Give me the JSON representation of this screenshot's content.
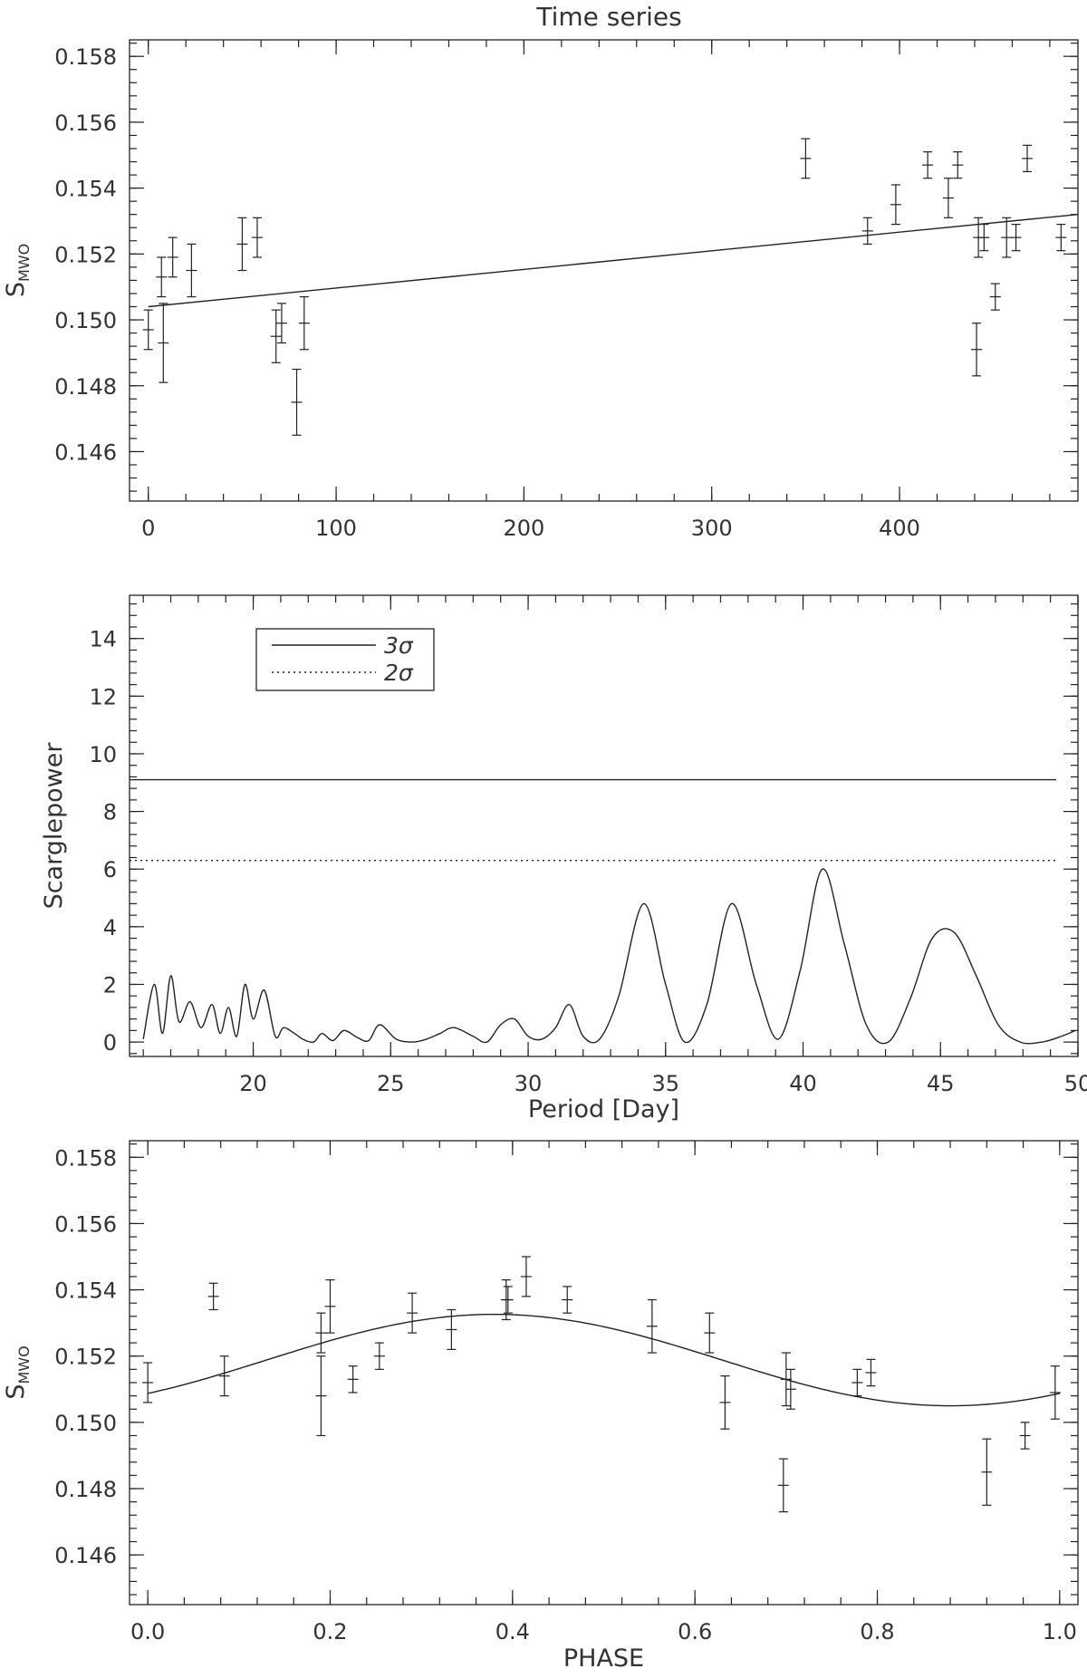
{
  "chart_data": [
    {
      "type": "scatter",
      "title": "Time series",
      "xlabel": "",
      "ylabel": "S",
      "ylabel_sub": "MWO",
      "xlim": [
        -10,
        495
      ],
      "ylim": [
        0.1445,
        0.1585
      ],
      "xticks": [
        0,
        100,
        200,
        300,
        400
      ],
      "xtick_labels": [
        "0",
        "100",
        "200",
        "300",
        "400"
      ],
      "yticks": [
        0.146,
        0.148,
        0.15,
        0.152,
        0.154,
        0.156,
        0.158
      ],
      "ytick_labels": [
        "0.146",
        "0.148",
        "0.150",
        "0.152",
        "0.154",
        "0.156",
        "0.158"
      ],
      "grid": false,
      "points": [
        {
          "x": 0,
          "y": 0.1497,
          "err": 0.0006
        },
        {
          "x": 7,
          "y": 0.1513,
          "err": 0.0006
        },
        {
          "x": 8,
          "y": 0.1493,
          "err": 0.0012
        },
        {
          "x": 13,
          "y": 0.1519,
          "err": 0.0006
        },
        {
          "x": 23,
          "y": 0.1515,
          "err": 0.0008
        },
        {
          "x": 50,
          "y": 0.1523,
          "err": 0.0008
        },
        {
          "x": 58,
          "y": 0.1525,
          "err": 0.0006
        },
        {
          "x": 68,
          "y": 0.1495,
          "err": 0.0008
        },
        {
          "x": 71,
          "y": 0.1499,
          "err": 0.0006
        },
        {
          "x": 79,
          "y": 0.1475,
          "err": 0.001
        },
        {
          "x": 83,
          "y": 0.1499,
          "err": 0.0008
        },
        {
          "x": 350,
          "y": 0.1549,
          "err": 0.0006
        },
        {
          "x": 383,
          "y": 0.1527,
          "err": 0.0004
        },
        {
          "x": 398,
          "y": 0.1535,
          "err": 0.0006
        },
        {
          "x": 415,
          "y": 0.1547,
          "err": 0.0004
        },
        {
          "x": 426,
          "y": 0.1537,
          "err": 0.0006
        },
        {
          "x": 431,
          "y": 0.1547,
          "err": 0.0004
        },
        {
          "x": 441,
          "y": 0.1491,
          "err": 0.0008
        },
        {
          "x": 442,
          "y": 0.1525,
          "err": 0.0006
        },
        {
          "x": 445,
          "y": 0.1525,
          "err": 0.0004
        },
        {
          "x": 451,
          "y": 0.1507,
          "err": 0.0004
        },
        {
          "x": 457,
          "y": 0.1525,
          "err": 0.0006
        },
        {
          "x": 462,
          "y": 0.1525,
          "err": 0.0004
        },
        {
          "x": 468,
          "y": 0.1549,
          "err": 0.0004
        },
        {
          "x": 486,
          "y": 0.1525,
          "err": 0.0004
        }
      ],
      "trend_line": {
        "x": [
          0,
          495
        ],
        "y": [
          0.1504,
          0.1532
        ]
      }
    },
    {
      "type": "line",
      "title": "",
      "xlabel": "Period [Day]",
      "ylabel": "Scarglepower",
      "xlim": [
        15.5,
        50
      ],
      "ylim": [
        -0.5,
        15.5
      ],
      "xticks": [
        20,
        25,
        30,
        35,
        40,
        45,
        50
      ],
      "xtick_labels": [
        "20",
        "25",
        "30",
        "35",
        "40",
        "45",
        "50"
      ],
      "yticks": [
        0,
        2,
        4,
        6,
        8,
        10,
        12,
        14
      ],
      "ytick_labels": [
        "0",
        "2",
        "4",
        "6",
        "8",
        "10",
        "12",
        "14"
      ],
      "grid": false,
      "legend": {
        "placement": "top-left",
        "entries": [
          {
            "label": "3σ",
            "style": "solid"
          },
          {
            "label": "2σ",
            "style": "dotted"
          }
        ]
      },
      "thresholds": [
        {
          "label": "3σ",
          "y": 9.1,
          "style": "solid"
        },
        {
          "label": "2σ",
          "y": 6.3,
          "style": "dotted"
        }
      ],
      "series": [
        {
          "x": [
            16,
            16.4,
            16.7,
            17.0,
            17.3,
            17.7,
            18.1,
            18.5,
            18.8,
            19.1,
            19.4,
            19.7,
            20.0,
            20.4,
            20.8,
            21.1,
            21.5,
            21.8,
            22.2,
            22.5,
            22.9,
            23.3,
            23.8,
            24.2,
            24.6,
            25.2,
            25.8,
            26.3,
            26.8,
            27.3,
            28.0,
            28.5,
            29.0,
            29.5,
            30.0,
            30.5,
            31.0,
            31.5,
            32.0,
            32.6,
            33.3,
            34.2,
            35.0,
            35.7,
            36.5,
            37.4,
            38.3,
            39.1,
            39.9,
            40.7,
            41.5,
            42.3,
            43.1,
            43.9,
            44.7,
            45.5,
            46.3,
            47.1,
            47.9,
            48.7,
            49.4,
            49.9
          ],
          "y": [
            0.1,
            2.0,
            0.3,
            2.3,
            0.7,
            1.4,
            0.5,
            1.3,
            0.3,
            1.2,
            0.2,
            2.0,
            0.8,
            1.8,
            0.2,
            0.5,
            0.3,
            0.1,
            0.0,
            0.3,
            0.05,
            0.4,
            0.15,
            0.05,
            0.6,
            0.1,
            0.0,
            0.1,
            0.3,
            0.5,
            0.2,
            0.0,
            0.6,
            0.8,
            0.2,
            0.1,
            0.5,
            1.3,
            0.2,
            0.1,
            1.6,
            4.8,
            2.0,
            0.0,
            1.3,
            4.8,
            2.0,
            0.1,
            2.5,
            6.0,
            3.4,
            0.6,
            0.0,
            1.5,
            3.6,
            3.8,
            2.3,
            0.6,
            0.0,
            0.0,
            0.2,
            0.4
          ]
        }
      ]
    },
    {
      "type": "scatter",
      "title": "",
      "xlabel": "PHASE",
      "ylabel": "S",
      "ylabel_sub": "MWO",
      "xlim": [
        -0.02,
        1.02
      ],
      "ylim": [
        0.1445,
        0.1585
      ],
      "xticks": [
        0.0,
        0.2,
        0.4,
        0.6,
        0.8,
        1.0
      ],
      "xtick_labels": [
        "0.0",
        "0.2",
        "0.4",
        "0.6",
        "0.8",
        "1.0"
      ],
      "yticks": [
        0.146,
        0.148,
        0.15,
        0.152,
        0.154,
        0.156,
        0.158
      ],
      "ytick_labels": [
        "0.146",
        "0.148",
        "0.150",
        "0.152",
        "0.154",
        "0.156",
        "0.158"
      ],
      "grid": false,
      "points": [
        {
          "x": 0.0,
          "y": 0.1512,
          "err": 0.0006
        },
        {
          "x": 0.072,
          "y": 0.1538,
          "err": 0.0004
        },
        {
          "x": 0.084,
          "y": 0.1514,
          "err": 0.0006
        },
        {
          "x": 0.19,
          "y": 0.1508,
          "err": 0.0012
        },
        {
          "x": 0.19,
          "y": 0.1527,
          "err": 0.0006
        },
        {
          "x": 0.2,
          "y": 0.1535,
          "err": 0.0008
        },
        {
          "x": 0.225,
          "y": 0.1513,
          "err": 0.0004
        },
        {
          "x": 0.254,
          "y": 0.152,
          "err": 0.0004
        },
        {
          "x": 0.29,
          "y": 0.1533,
          "err": 0.0006
        },
        {
          "x": 0.333,
          "y": 0.1528,
          "err": 0.0006
        },
        {
          "x": 0.393,
          "y": 0.1537,
          "err": 0.0006
        },
        {
          "x": 0.395,
          "y": 0.1537,
          "err": 0.0004
        },
        {
          "x": 0.415,
          "y": 0.1544,
          "err": 0.0006
        },
        {
          "x": 0.46,
          "y": 0.1537,
          "err": 0.0004
        },
        {
          "x": 0.553,
          "y": 0.1529,
          "err": 0.0008
        },
        {
          "x": 0.616,
          "y": 0.1527,
          "err": 0.0006
        },
        {
          "x": 0.633,
          "y": 0.1506,
          "err": 0.0008
        },
        {
          "x": 0.697,
          "y": 0.1481,
          "err": 0.0008
        },
        {
          "x": 0.7,
          "y": 0.1513,
          "err": 0.0008
        },
        {
          "x": 0.705,
          "y": 0.151,
          "err": 0.0006
        },
        {
          "x": 0.778,
          "y": 0.1512,
          "err": 0.0004
        },
        {
          "x": 0.793,
          "y": 0.1515,
          "err": 0.0004
        },
        {
          "x": 0.92,
          "y": 0.1485,
          "err": 0.001
        },
        {
          "x": 0.962,
          "y": 0.1496,
          "err": 0.0004
        },
        {
          "x": 0.995,
          "y": 0.1509,
          "err": 0.0008
        }
      ],
      "fit_curve": {
        "mean": 0.15188,
        "amplitude": 0.00138,
        "phase_of_peak": 0.38
      }
    }
  ]
}
